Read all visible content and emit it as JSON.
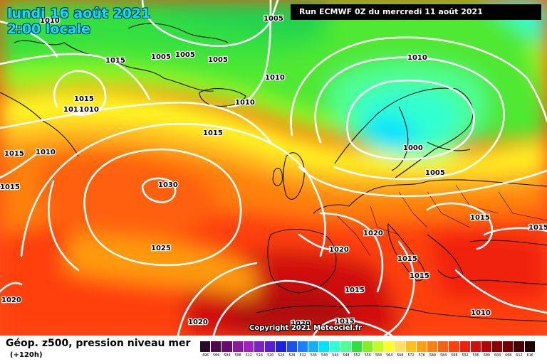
{
  "header": {
    "date_line": "lundi 16 août 2021",
    "time_line": "2:00 locale",
    "run": "Run ECMWF 0Z du mercredi 11 août 2021"
  },
  "copyright": "Copyright 2021 Meteociel.fr",
  "legend": {
    "title": "Géop. z500, pression niveau mer",
    "subtitle": "(+120h)",
    "scale": [
      {
        "label": "496",
        "color": "#2a0a2a"
      },
      {
        "label": "500",
        "color": "#4a0a4a"
      },
      {
        "label": "504",
        "color": "#6a0a6a"
      },
      {
        "label": "508",
        "color": "#8a1a9a"
      },
      {
        "label": "512",
        "color": "#a020c0"
      },
      {
        "label": "516",
        "color": "#7a22c8"
      },
      {
        "label": "520",
        "color": "#5a20d0"
      },
      {
        "label": "524",
        "color": "#2020e0"
      },
      {
        "label": "528",
        "color": "#1a50f0"
      },
      {
        "label": "532",
        "color": "#1a80ff"
      },
      {
        "label": "536",
        "color": "#10b0ff"
      },
      {
        "label": "540",
        "color": "#00e0ff"
      },
      {
        "label": "544",
        "color": "#30ffd0"
      },
      {
        "label": "548",
        "color": "#50ff90"
      },
      {
        "label": "552",
        "color": "#30e040"
      },
      {
        "label": "556",
        "color": "#80f020"
      },
      {
        "label": "560",
        "color": "#c0ff20"
      },
      {
        "label": "564",
        "color": "#ffff20"
      },
      {
        "label": "568",
        "color": "#ffe060"
      },
      {
        "label": "572",
        "color": "#ffc020"
      },
      {
        "label": "576",
        "color": "#ffa010"
      },
      {
        "label": "580",
        "color": "#ff8010"
      },
      {
        "label": "584",
        "color": "#ff6010"
      },
      {
        "label": "588",
        "color": "#ff4010"
      },
      {
        "label": "592",
        "color": "#f02010"
      },
      {
        "label": "596",
        "color": "#d01010"
      },
      {
        "label": "600",
        "color": "#b00808"
      },
      {
        "label": "604",
        "color": "#900000"
      },
      {
        "label": "608",
        "color": "#700000"
      },
      {
        "label": "612",
        "color": "#480000"
      },
      {
        "label": "616",
        "color": "#200000"
      }
    ]
  },
  "isobar_labels": [
    {
      "id": "p1010-greenland-n",
      "text": "1010"
    },
    {
      "id": "p1005-n1",
      "text": "1005"
    },
    {
      "id": "p1015-w1",
      "text": "1015"
    },
    {
      "id": "p1005-n2",
      "text": "1005"
    },
    {
      "id": "p1005-n3",
      "text": "1005"
    },
    {
      "id": "p1005-n4",
      "text": "1005"
    },
    {
      "id": "p1010-mid",
      "text": "1010"
    },
    {
      "id": "p1010-scand",
      "text": "1010"
    },
    {
      "id": "p1015-g1",
      "text": "1015"
    },
    {
      "id": "p1015-g2",
      "text": "1015"
    },
    {
      "id": "p1010-g3",
      "text": "1010"
    },
    {
      "id": "p1010-iceland",
      "text": "1010"
    },
    {
      "id": "p1015-atl",
      "text": "1015"
    },
    {
      "id": "p1015-w2",
      "text": "1015"
    },
    {
      "id": "p1010-w3",
      "text": "1010"
    },
    {
      "id": "p1015-w4",
      "text": "1015"
    },
    {
      "id": "p1030-high",
      "text": "1030"
    },
    {
      "id": "p1000-low",
      "text": "1000"
    },
    {
      "id": "p1005-low",
      "text": "1005"
    },
    {
      "id": "p1015-east",
      "text": "1015"
    },
    {
      "id": "p1015-east2",
      "text": "1015"
    },
    {
      "id": "p1020-biscay",
      "text": "1020"
    },
    {
      "id": "p1025",
      "text": "1025"
    },
    {
      "id": "p1020-iberia",
      "text": "1020"
    },
    {
      "id": "p1015-italy",
      "text": "1015"
    },
    {
      "id": "p1015-balkan",
      "text": "1015"
    },
    {
      "id": "p1020-sw",
      "text": "1020"
    },
    {
      "id": "p1015-med",
      "text": "1015"
    },
    {
      "id": "p1010-east",
      "text": "1010"
    },
    {
      "id": "p1020-africa",
      "text": "1020"
    },
    {
      "id": "p1015-africa",
      "text": "1015"
    },
    {
      "id": "p1020-atl-s",
      "text": "1020"
    }
  ]
}
